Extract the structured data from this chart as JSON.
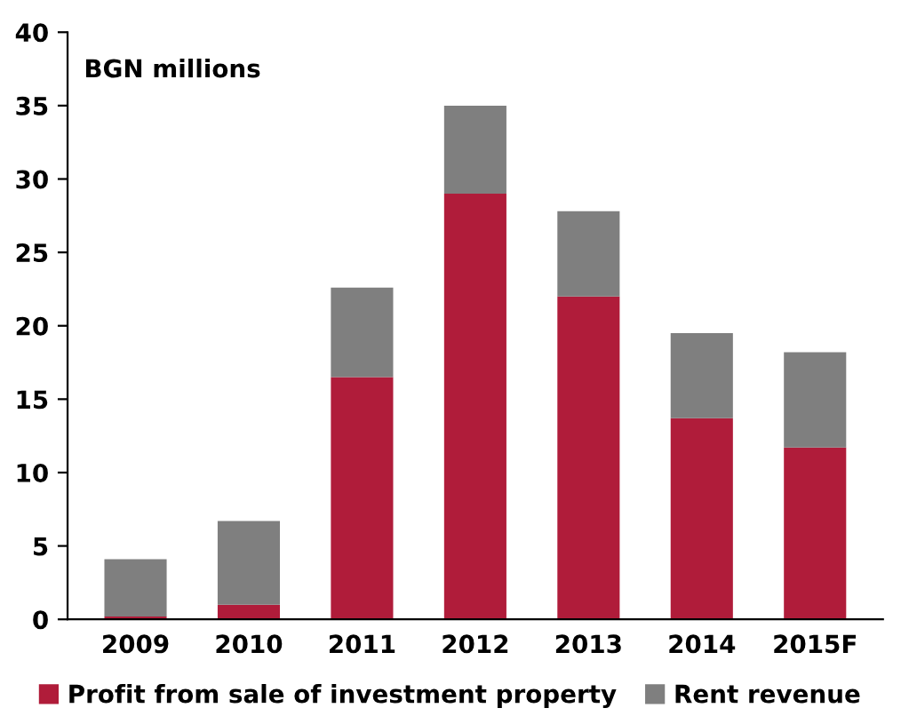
{
  "chart_data": {
    "type": "bar",
    "stacked": true,
    "categories": [
      "2009",
      "2010",
      "2011",
      "2012",
      "2013",
      "2014",
      "2015F"
    ],
    "series": [
      {
        "name": "Profit from sale of investment property",
        "color": "#b01c3a",
        "values": [
          0.2,
          1.0,
          16.5,
          29.0,
          22.0,
          13.7,
          11.7
        ]
      },
      {
        "name": "Rent revenue",
        "color": "#7f7f7f",
        "values": [
          3.9,
          5.7,
          6.1,
          6.0,
          5.8,
          5.8,
          6.5
        ]
      }
    ],
    "ylim": [
      0,
      40
    ],
    "yticks": [
      0,
      5,
      10,
      15,
      20,
      25,
      30,
      35,
      40
    ],
    "grid": false,
    "legend": "bottom",
    "annotations": [
      "BGN millions"
    ]
  }
}
